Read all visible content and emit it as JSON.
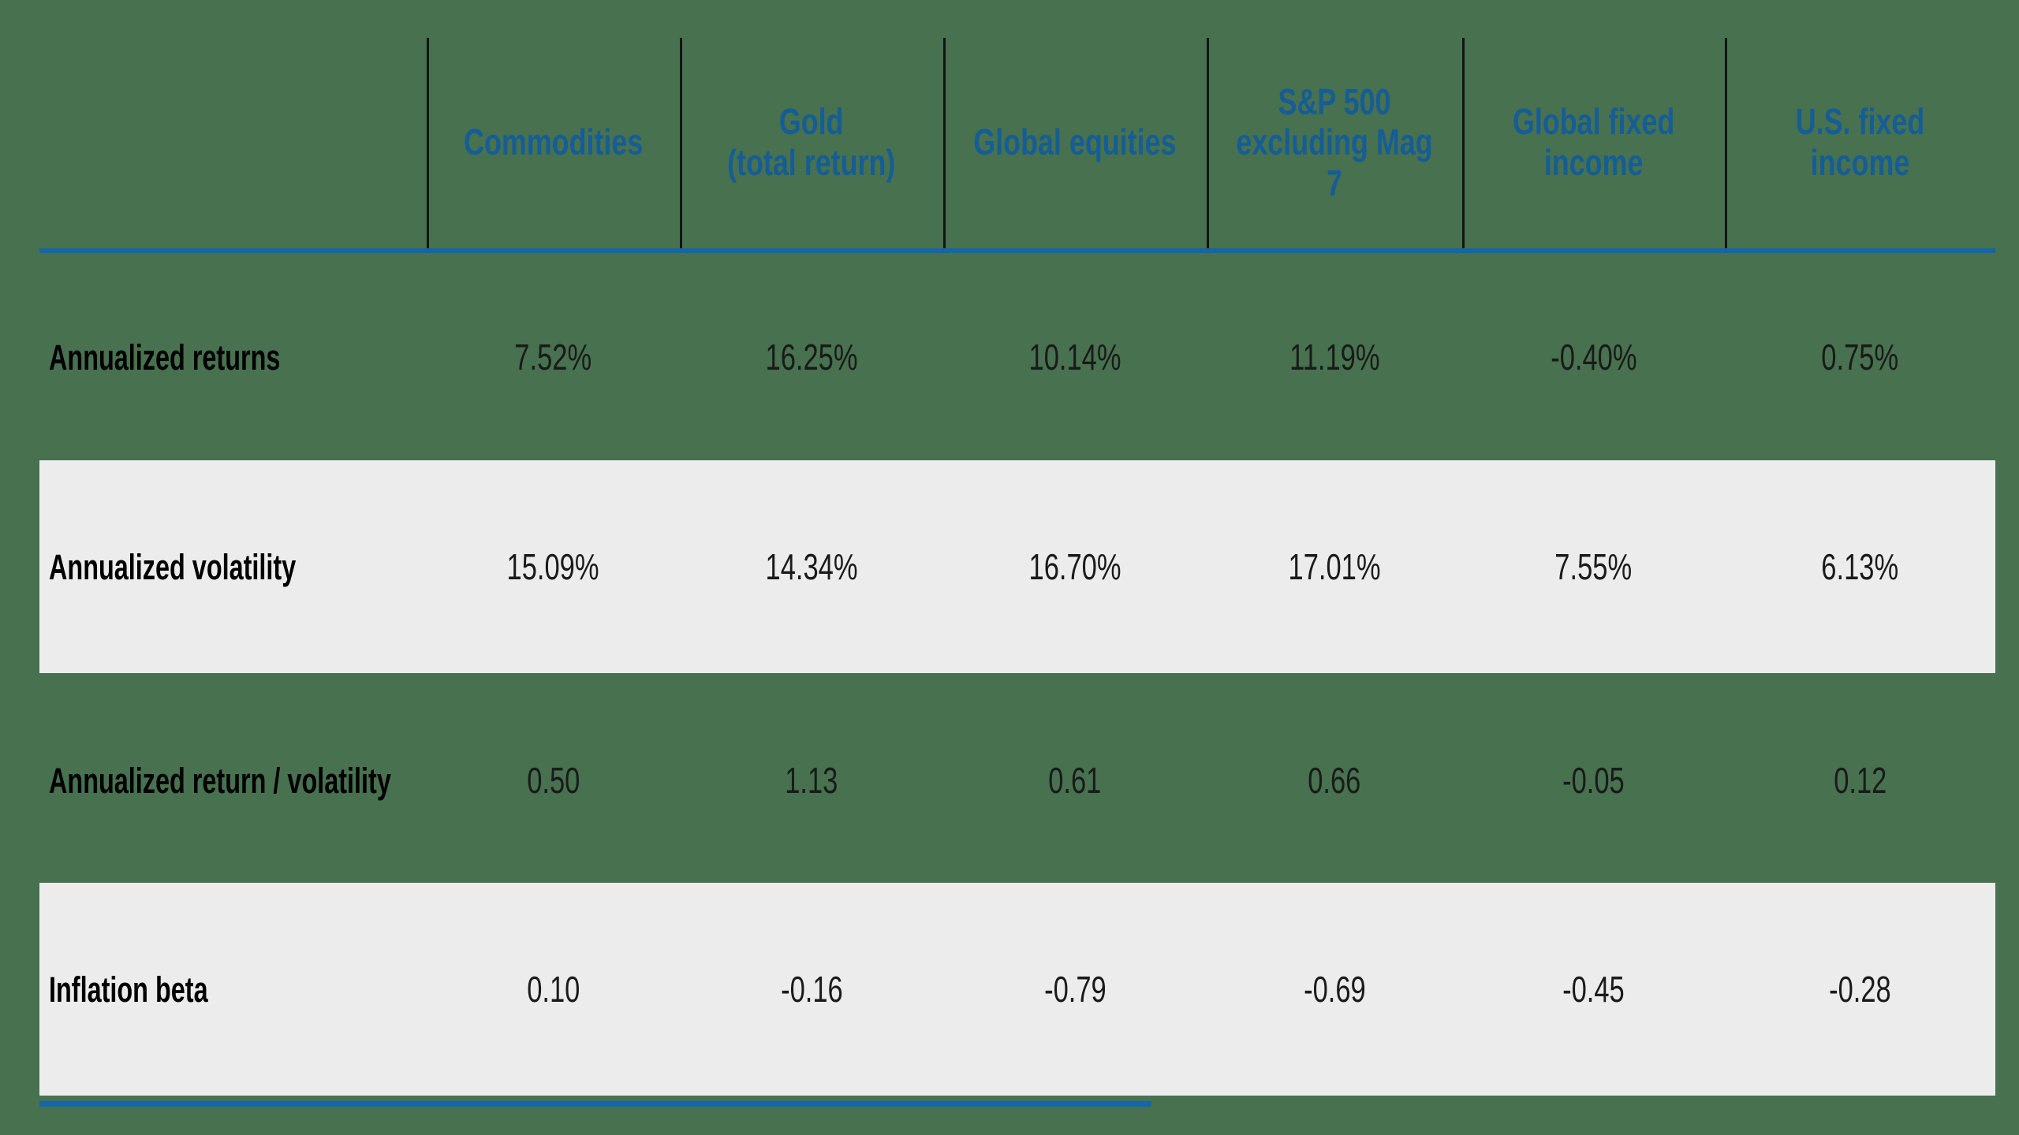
{
  "colors": {
    "background_green": "#47714F",
    "header_blue": "#155D97",
    "rule_blue": "#1466AA",
    "divider_black": "#141414",
    "shaded_band_gray": "#ECECEC",
    "value_text": "#1A1A1A"
  },
  "table": {
    "columns": [
      {
        "label": "Commodities"
      },
      {
        "label": "Gold\n(total return)"
      },
      {
        "label": "Global equities"
      },
      {
        "label": "S&P 500\nexcluding Mag 7"
      },
      {
        "label": "Global fixed\nincome"
      },
      {
        "label": "U.S. fixed income"
      }
    ],
    "rows": [
      {
        "label": "Annualized returns",
        "values": [
          "7.52%",
          "16.25%",
          "10.14%",
          "11.19%",
          "-0.40%",
          "0.75%"
        ],
        "shaded": false
      },
      {
        "label": "Annualized volatility",
        "values": [
          "15.09%",
          "14.34%",
          "16.70%",
          "17.01%",
          "7.55%",
          "6.13%"
        ],
        "shaded": true
      },
      {
        "label": "Annualized return / volatility",
        "values": [
          "0.50",
          "1.13",
          "0.61",
          "0.66",
          "-0.05",
          "0.12"
        ],
        "shaded": false
      },
      {
        "label": "Inflation beta",
        "values": [
          "0.10",
          "-0.16",
          "-0.79",
          "-0.69",
          "-0.45",
          "-0.28"
        ],
        "shaded": true
      }
    ]
  },
  "chart_data": {
    "type": "table",
    "title": "",
    "categories": [
      "Commodities",
      "Gold (total return)",
      "Global equities",
      "S&P 500 excluding Mag 7",
      "Global fixed income",
      "U.S. fixed income"
    ],
    "series": [
      {
        "name": "Annualized returns (%)",
        "values": [
          7.52,
          16.25,
          10.14,
          11.19,
          -0.4,
          0.75
        ]
      },
      {
        "name": "Annualized volatility (%)",
        "values": [
          15.09,
          14.34,
          16.7,
          17.01,
          7.55,
          6.13
        ]
      },
      {
        "name": "Annualized return / volatility",
        "values": [
          0.5,
          1.13,
          0.61,
          0.66,
          -0.05,
          0.12
        ]
      },
      {
        "name": "Inflation beta",
        "values": [
          0.1,
          -0.16,
          -0.79,
          -0.69,
          -0.45,
          -0.28
        ]
      }
    ],
    "layout_hints": {
      "shaded_rows": [
        1,
        3
      ],
      "header_color": "#155D97",
      "grid": "vertical dividers in header only"
    }
  }
}
